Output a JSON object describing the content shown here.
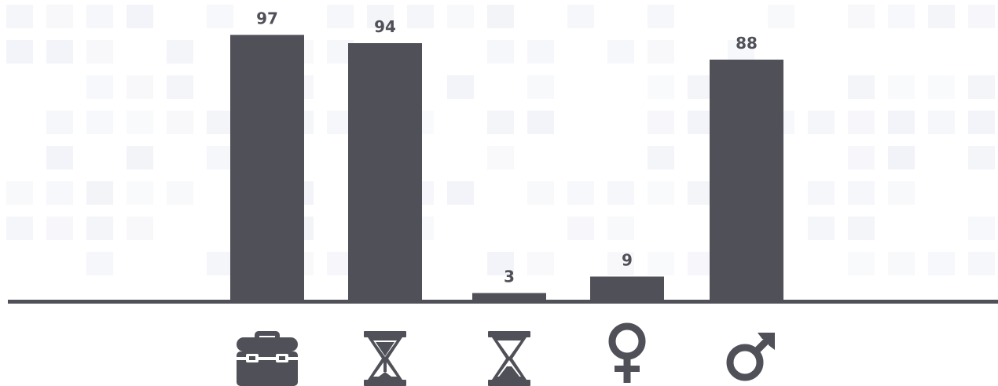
{
  "colors": {
    "bar": "#505059",
    "baseline": "#505059",
    "label": "#505059",
    "background": "#ffffff",
    "tile_tint": "#dfe2ee"
  },
  "chart_data": {
    "type": "bar",
    "categories": [
      "briefcase-icon",
      "hourglass-full-icon",
      "hourglass-empty-icon",
      "female-symbol-icon",
      "male-symbol-icon"
    ],
    "values": [
      97,
      94,
      3,
      9,
      88
    ],
    "title": "",
    "xlabel": "",
    "ylabel": "",
    "ylim": [
      0,
      100
    ],
    "grid": false,
    "legend": "none",
    "data_labels": true
  }
}
